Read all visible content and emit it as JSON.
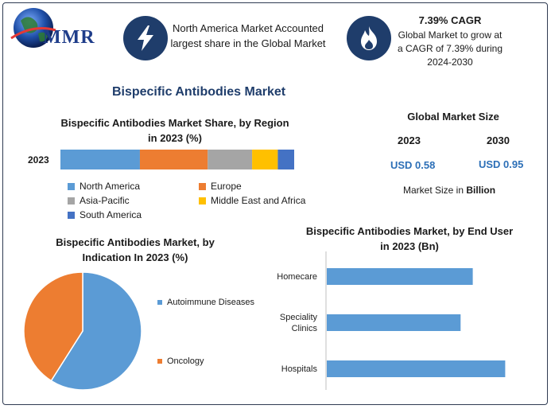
{
  "header": {
    "logo_text": "MMR",
    "icon1": "lightning-icon",
    "info1": "North America Market Accounted largest share in the Global Market",
    "icon2": "flame-icon",
    "cagr_title": "7.39% CAGR",
    "cagr_text": "Global Market to grow at a CAGR of 7.39% during 2024-2030"
  },
  "main_title": "Bispecific Antibodies Market",
  "market_size": {
    "title": "Global Market Size",
    "year_a": "2023",
    "year_b": "2030",
    "value_a": "USD 0.58",
    "value_b": "USD 0.95",
    "note_prefix": "Market Size in ",
    "note_unit": "Billion"
  },
  "colors": {
    "north_america": "#5b9bd5",
    "europe": "#ed7d31",
    "asia_pacific": "#a5a5a5",
    "mea": "#ffc000",
    "south_america": "#4472c4",
    "autoimmune": "#5b9bd5",
    "oncology": "#ed7d31",
    "enduser_bar": "#5b9bd5"
  },
  "chart_data": [
    {
      "type": "bar",
      "orientation": "horizontal-stacked",
      "title": "Bispecific Antibodies Market Share, by Region in 2023 (%)",
      "categories": [
        "2023"
      ],
      "series": [
        {
          "name": "North America",
          "values": [
            34
          ]
        },
        {
          "name": "Europe",
          "values": [
            29
          ]
        },
        {
          "name": "Asia-Pacific",
          "values": [
            19
          ]
        },
        {
          "name": "Middle East and Africa",
          "values": [
            11
          ]
        },
        {
          "name": "South America",
          "values": [
            7
          ]
        }
      ],
      "legend": "bottom"
    },
    {
      "type": "pie",
      "title": "Bispecific Antibodies Market, by Indication In 2023 (%)",
      "labels": [
        "Autoimmune Diseases",
        "Oncology"
      ],
      "values": [
        59,
        41
      ],
      "legend": "right"
    },
    {
      "type": "bar",
      "orientation": "horizontal",
      "title": "Bispecific Antibodies Market, by End User in 2023 (Bn)",
      "categories": [
        "Homecare",
        "Speciality Clinics",
        "Hospitals"
      ],
      "values": [
        0.18,
        0.165,
        0.22
      ],
      "xlim": [
        0,
        0.25
      ]
    }
  ]
}
